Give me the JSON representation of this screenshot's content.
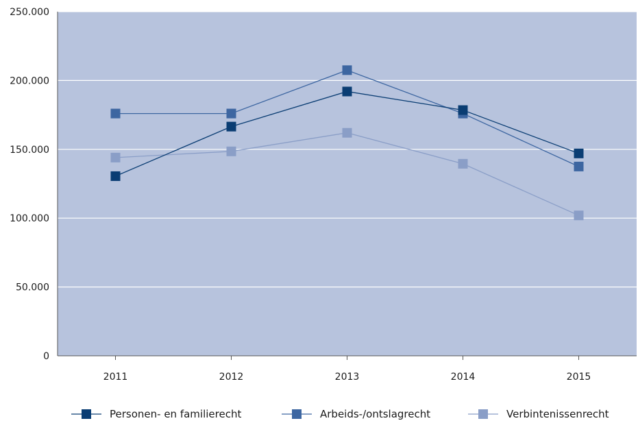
{
  "chart_data": {
    "type": "line",
    "title": "",
    "xlabel": "",
    "ylabel": "",
    "x": [
      "2011",
      "2012",
      "2013",
      "2014",
      "2015"
    ],
    "ylim": [
      0,
      250000
    ],
    "y_ticks": [
      0,
      50000,
      100000,
      150000,
      200000,
      250000
    ],
    "y_tick_labels": [
      "0",
      "50.000",
      "100.000",
      "150.000",
      "200.000",
      "250.000"
    ],
    "grid": true,
    "legend_position": "bottom",
    "plot_background": "#b7c3dd",
    "gridline_color": "#ffffff",
    "series": [
      {
        "name": "Personen- en familierecht",
        "color": "#0a3d73",
        "values": [
          130500,
          166500,
          192000,
          178500,
          147000
        ]
      },
      {
        "name": "Arbeids-/ontslagrecht",
        "color": "#3d66a1",
        "values": [
          176000,
          176000,
          207500,
          176000,
          137500
        ]
      },
      {
        "name": "Verbintenissenrecht",
        "color": "#8a9ec7",
        "values": [
          144000,
          148500,
          162000,
          139500,
          102000
        ]
      }
    ]
  }
}
